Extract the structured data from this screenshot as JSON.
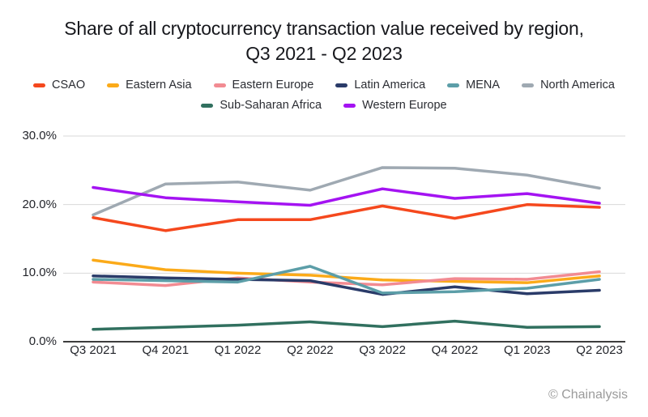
{
  "title": {
    "line1": "Share of all cryptocurrency transaction value received by region,",
    "line2": "Q3 2021 - Q2 2023"
  },
  "footer": {
    "credit": "© Chainalysis"
  },
  "chart_data": {
    "type": "line",
    "title": "Share of all cryptocurrency transaction value received by region, Q3 2021 - Q2 2023",
    "categories": [
      "Q3 2021",
      "Q4 2021",
      "Q1 2022",
      "Q2 2022",
      "Q3 2022",
      "Q4 2022",
      "Q1 2023",
      "Q2 2023"
    ],
    "series": [
      {
        "name": "CSAO",
        "color": "#f5481d",
        "values": [
          18.1,
          16.2,
          17.8,
          17.8,
          19.8,
          18.0,
          20.0,
          19.6
        ]
      },
      {
        "name": "Eastern Asia",
        "color": "#fbaa19",
        "values": [
          11.9,
          10.5,
          10.0,
          9.7,
          9.0,
          8.8,
          8.6,
          9.6
        ]
      },
      {
        "name": "Eastern Europe",
        "color": "#f28b92",
        "values": [
          8.7,
          8.2,
          9.3,
          8.7,
          8.3,
          9.2,
          9.1,
          10.2
        ]
      },
      {
        "name": "Latin America",
        "color": "#2a3b69",
        "values": [
          9.6,
          9.3,
          9.1,
          8.9,
          6.9,
          8.0,
          7.0,
          7.5
        ]
      },
      {
        "name": "MENA",
        "color": "#5c9ea8",
        "values": [
          9.1,
          8.9,
          8.7,
          11.0,
          7.1,
          7.3,
          7.8,
          9.1
        ]
      },
      {
        "name": "North America",
        "color": "#9fa9b2",
        "values": [
          18.5,
          23.0,
          23.3,
          22.1,
          25.4,
          25.3,
          24.3,
          22.4
        ]
      },
      {
        "name": "Sub-Saharan Africa",
        "color": "#31705f",
        "values": [
          1.8,
          2.1,
          2.4,
          2.9,
          2.2,
          3.0,
          2.1,
          2.2
        ]
      },
      {
        "name": "Western Europe",
        "color": "#a413f2",
        "values": [
          22.5,
          21.0,
          20.4,
          19.9,
          22.3,
          20.9,
          21.6,
          20.2
        ]
      }
    ],
    "xlabel": "",
    "ylabel": "",
    "ylim": [
      0,
      30
    ],
    "y_ticks": [
      {
        "value": 0,
        "label": "0.0%"
      },
      {
        "value": 10,
        "label": "10.0%"
      },
      {
        "value": 20,
        "label": "20.0%"
      },
      {
        "value": 30,
        "label": "30.0%"
      }
    ],
    "grid": true,
    "legend_position": "top",
    "legend_rows": [
      6,
      2
    ]
  }
}
